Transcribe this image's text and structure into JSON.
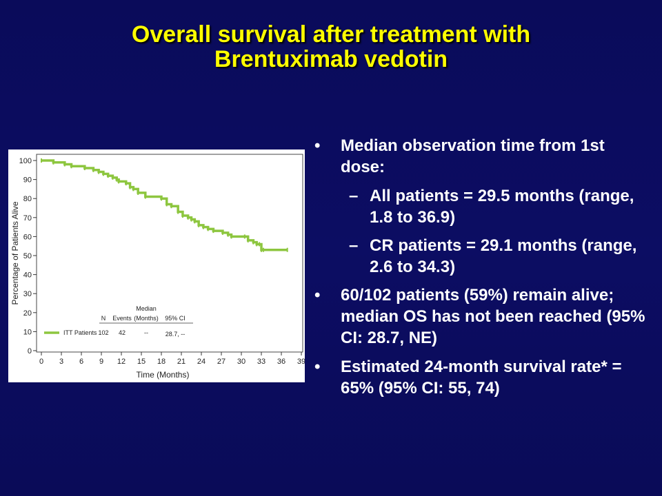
{
  "title": {
    "line1": "Overall survival after treatment with",
    "line2": "Brentuximab vedotin"
  },
  "bullets": [
    {
      "mark": "•",
      "text": " Median observation time from 1st dose:"
    },
    {
      "mark": "–",
      "text": "All patients = 29.5 months (range, 1.8 to 36.9)",
      "sub": true
    },
    {
      "mark": "–",
      "text": "CR patients = 29.1 months (range, 2.6 to 34.3)",
      "sub": true
    },
    {
      "mark": "•",
      "text": "60/102 patients (59%) remain alive; median OS has not been reached (95% CI: 28.7, NE)"
    },
    {
      "mark": "•",
      "text": "Estimated 24-month survival rate* = 65% (95% CI: 55, 74)"
    }
  ],
  "chart_data": {
    "type": "line",
    "xlabel": "Time (Months)",
    "ylabel": "Percentage of Patients Alive",
    "xlim": [
      0,
      39
    ],
    "ylim": [
      0,
      100
    ],
    "xticks": [
      "0",
      "3",
      "6",
      "9",
      "12",
      "15",
      "18",
      "21",
      "24",
      "27",
      "30",
      "33",
      "36",
      "39"
    ],
    "yticks": [
      "0",
      "10",
      "20",
      "30",
      "40",
      "50",
      "60",
      "70",
      "80",
      "90",
      "100"
    ],
    "colors": {
      "series": "#8dc63f"
    },
    "table_headers": {
      "n": "N",
      "events": "Events",
      "median_line1": "Median",
      "median_line2": "(Months)",
      "ci": "95% CI"
    },
    "series": [
      {
        "name": "ITT Patients",
        "n": "102",
        "events": "42",
        "median": "--",
        "ci": "28.7, --",
        "x": [
          0,
          1.8,
          3.5,
          4.5,
          6.5,
          7.8,
          8.6,
          9.3,
          10.0,
          10.7,
          11.3,
          11.6,
          12.7,
          13.3,
          13.8,
          14.5,
          15.6,
          18.0,
          18.8,
          19.5,
          20.5,
          21.2,
          22.0,
          22.5,
          23.0,
          23.6,
          24.3,
          25.0,
          25.8,
          27.2,
          28.0,
          28.5,
          30.5,
          31.0,
          31.8,
          32.3,
          32.7,
          33.0,
          33.3,
          36.9
        ],
        "y": [
          100,
          99,
          98,
          97,
          96,
          95,
          94,
          93,
          92,
          91,
          90,
          89,
          88,
          86,
          85,
          83,
          81,
          80,
          77,
          76,
          73,
          71,
          70,
          69,
          68,
          66,
          65,
          64,
          63,
          62,
          61,
          60,
          60,
          58,
          57,
          56,
          56,
          53,
          53,
          53
        ]
      }
    ]
  }
}
